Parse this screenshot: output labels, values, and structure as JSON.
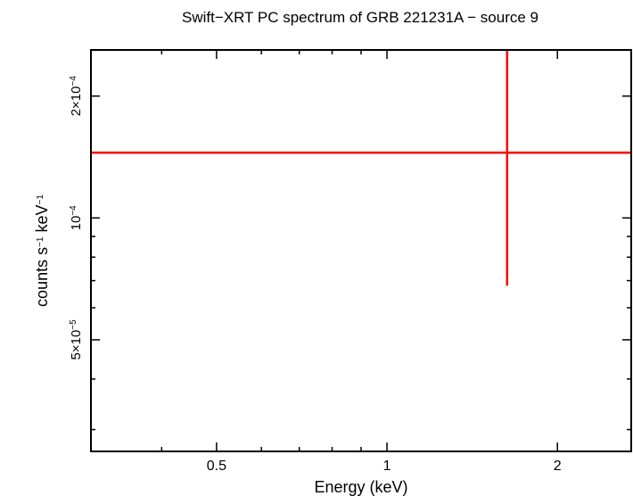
{
  "chart_data": {
    "type": "scatter",
    "title": "Swift−XRT PC spectrum of GRB 221231A − source 9",
    "xlabel": "Energy (keV)",
    "ylabel": {
      "base": "counts s",
      "exp1": "−1",
      "mid": " keV",
      "exp2": "−1"
    },
    "x_scale": "log",
    "y_scale": "log",
    "xlim": [
      0.3,
      2.7
    ],
    "ylim": [
      2.65e-05,
      0.00026
    ],
    "x_ticks": [
      {
        "value": 0.5,
        "label": "0.5"
      },
      {
        "value": 1,
        "label": "1"
      },
      {
        "value": 2,
        "label": "2"
      }
    ],
    "y_ticks": [
      {
        "value": 5e-05,
        "mant": "5×10",
        "exp": "−5"
      },
      {
        "value": 0.0001,
        "mant": "10",
        "exp": "−4"
      },
      {
        "value": 0.0002,
        "mant": "2×10",
        "exp": "−4"
      }
    ],
    "grid": false,
    "series": [
      {
        "color": "#ff0000",
        "points": [
          {
            "x": 1.63,
            "x_low": 0.3,
            "x_high": 2.7,
            "y": 0.000145,
            "y_low": 6.8e-05,
            "y_high": 0.00026
          }
        ]
      }
    ]
  }
}
